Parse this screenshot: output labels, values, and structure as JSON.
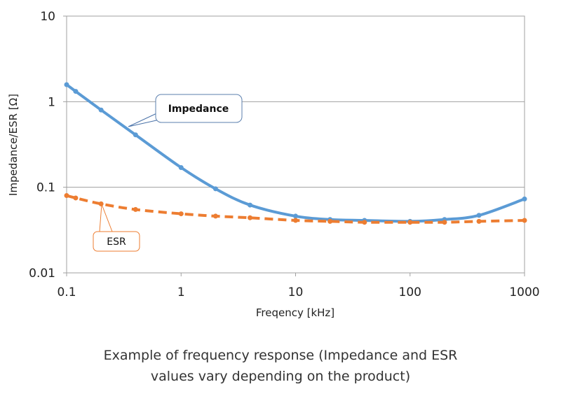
{
  "chart_data": {
    "type": "line",
    "xlabel": "Freqency [kHz]",
    "ylabel": "Impedance/ESR [Ω]",
    "x_scale": "log",
    "y_scale": "log",
    "xlim": [
      0.1,
      1000
    ],
    "ylim": [
      0.01,
      10
    ],
    "x_ticks": [
      "0.1",
      "1",
      "10",
      "100",
      "1000"
    ],
    "y_ticks": [
      "0.01",
      "0.1",
      "1",
      "10"
    ],
    "grid": "horizontal",
    "x": [
      0.1,
      0.12,
      0.2,
      0.4,
      1,
      2,
      4,
      10,
      20,
      40,
      100,
      200,
      400,
      1000
    ],
    "series": [
      {
        "name": "Impedance",
        "color": "#5b9bd5",
        "style": "solid",
        "values": [
          1.58,
          1.32,
          0.8,
          0.41,
          0.17,
          0.096,
          0.062,
          0.046,
          0.042,
          0.041,
          0.04,
          0.042,
          0.047,
          0.073
        ]
      },
      {
        "name": "ESR",
        "color": "#ed7d31",
        "style": "dashed",
        "values": [
          0.08,
          0.075,
          0.064,
          0.055,
          0.049,
          0.046,
          0.044,
          0.041,
          0.04,
          0.039,
          0.039,
          0.039,
          0.04,
          0.041
        ]
      }
    ],
    "caption": [
      "Example of frequency response (Impedance and ESR",
      "values vary depending on the product)"
    ]
  }
}
